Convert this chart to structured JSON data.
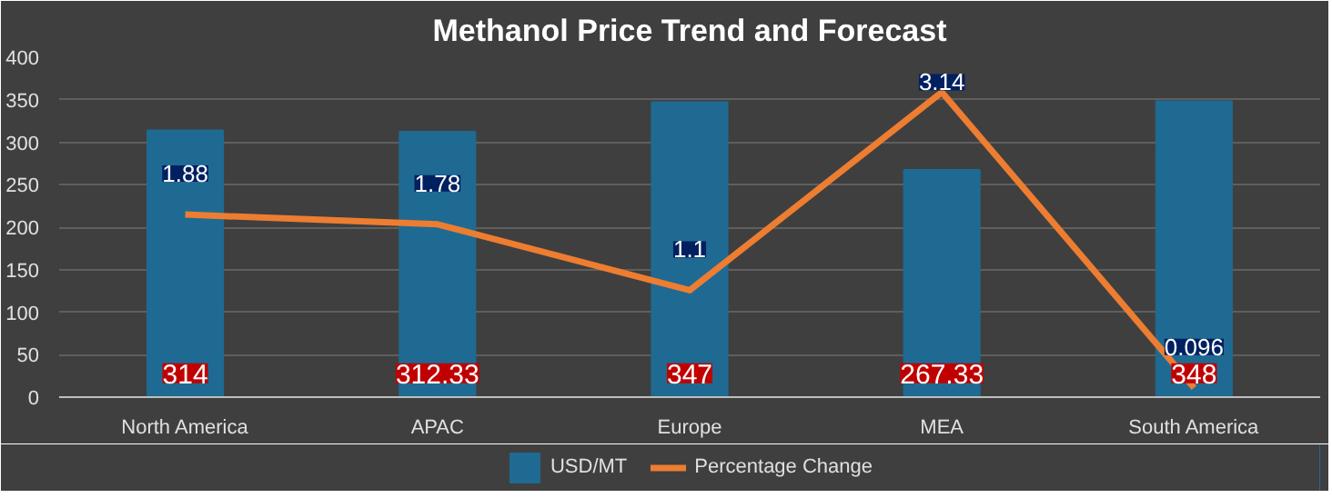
{
  "chart_data": {
    "type": "bar",
    "title": "Methanol Price Trend and Forecast",
    "categories": [
      "North America",
      "APAC",
      "Europe",
      "MEA",
      "South America"
    ],
    "series": [
      {
        "name": "USD/MT",
        "color": "#1f6a93",
        "values": [
          314,
          312.33,
          347,
          267.33,
          348
        ]
      },
      {
        "name": "Percentage Change",
        "type": "line",
        "axis": "y2",
        "color": "#ed7d31",
        "values": [
          1.88,
          1.78,
          1.1,
          3.14,
          0.096
        ]
      }
    ],
    "ylim": [
      0,
      400
    ],
    "yticks": [
      0,
      50,
      100,
      150,
      200,
      250,
      300,
      350,
      400
    ],
    "y2lim": [
      0,
      3.5
    ],
    "data_labels": true,
    "grid": "y",
    "legend": "bottom"
  }
}
